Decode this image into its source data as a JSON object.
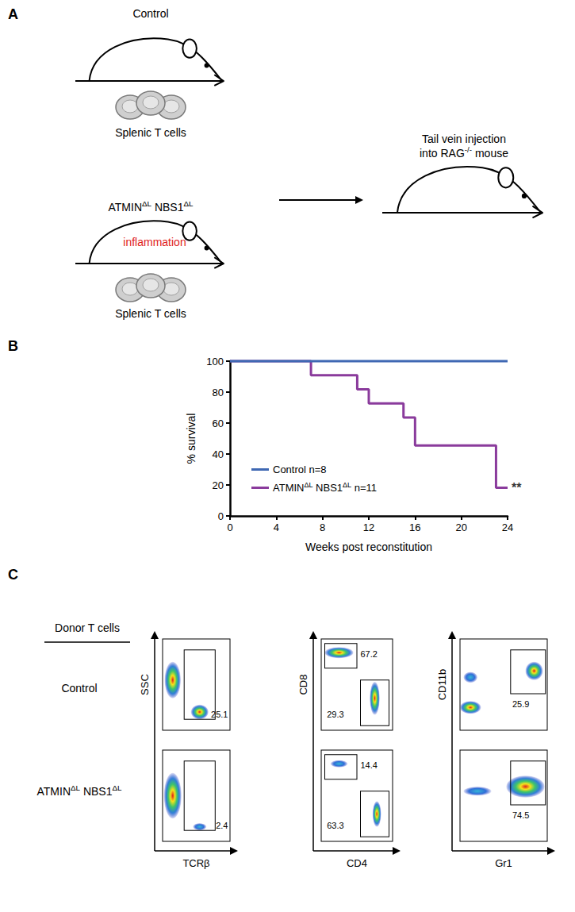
{
  "panel_labels": [
    "A",
    "B",
    "C"
  ],
  "superscripts": [
    "ΔL",
    "-/-"
  ],
  "diagram": {
    "donors": [
      {
        "label": "Control",
        "cells_label": "Splenic T cells"
      },
      {
        "label": "ATMINΔL NBS1ΔL",
        "condition": "inflammation",
        "cells_label": "Splenic T cells"
      }
    ],
    "recipient_label": [
      "Tail vein injection",
      "into RAG-/- mouse"
    ]
  },
  "chart_data": {
    "type": "line",
    "x_label": "Weeks post reconstitution",
    "y_label": "% survival",
    "xlim": [
      0,
      24
    ],
    "xticks": [
      0,
      4,
      8,
      12,
      16,
      20,
      24
    ],
    "ylim": [
      0,
      100
    ],
    "yticks": [
      0,
      20,
      40,
      60,
      80,
      100
    ],
    "grid": false,
    "line_style": "step",
    "legend": "lower left",
    "annotations": [
      {
        "text": "**",
        "x": 24,
        "y": 18.2
      }
    ],
    "series": [
      {
        "name": "Control n=8",
        "color": "#3f68b3",
        "x": [
          0,
          24
        ],
        "values": [
          100,
          100
        ]
      },
      {
        "name": "ATMINΔL NBS1ΔL n=11",
        "color": "#8a3b9c",
        "x": [
          0,
          7,
          11,
          12,
          15,
          16,
          23,
          24
        ],
        "values": [
          100,
          90.9,
          81.8,
          72.7,
          63.6,
          45.5,
          18.2,
          18.2
        ]
      }
    ]
  },
  "flow": {
    "header": "Donor T cells",
    "rows": [
      "Control",
      "ATMINΔL NBS1ΔL"
    ],
    "plots": [
      {
        "x_label": "TCRβ",
        "y_label": "SSC",
        "gates": [
          [
            25.1
          ],
          [
            2.4
          ]
        ]
      },
      {
        "x_label": "CD4",
        "y_label": "CD8",
        "gates": [
          [
            67.2,
            29.3
          ],
          [
            14.4,
            63.3
          ]
        ]
      },
      {
        "x_label": "Gr1",
        "y_label": "CD11b",
        "gates": [
          [
            25.9
          ],
          [
            74.5
          ]
        ]
      }
    ]
  }
}
